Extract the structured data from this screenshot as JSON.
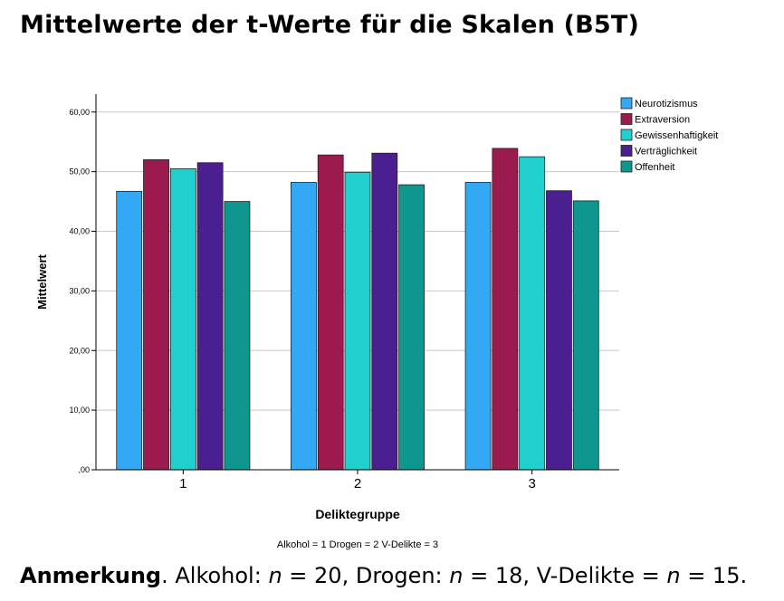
{
  "page_title": "Mittelwerte der t-Werte für die Skalen (B5T)",
  "chart_data": {
    "type": "bar",
    "title": "",
    "xlabel": "Deliktegruppe",
    "xlabel_note": "Alkohol = 1   Drogen = 2   V-Delikte = 3",
    "ylabel": "Mittelwert",
    "ylim": [
      0,
      63
    ],
    "yticks": [
      0,
      10,
      20,
      30,
      40,
      50,
      60
    ],
    "ytick_labels": [
      ",00",
      "10,00",
      "20,00",
      "30,00",
      "40,00",
      "50,00",
      "60,00"
    ],
    "grid": true,
    "legend_position": "top-right",
    "categories": [
      "1",
      "2",
      "3"
    ],
    "series": [
      {
        "name": "Neurotizismus",
        "color": "#33a8f5",
        "values": [
          46.7,
          48.2,
          48.2
        ]
      },
      {
        "name": "Extraversion",
        "color": "#9b1b4f",
        "values": [
          52.0,
          52.8,
          53.9
        ]
      },
      {
        "name": "Gewissenhaftigkeit",
        "color": "#22cfcf",
        "values": [
          50.5,
          49.9,
          52.5
        ]
      },
      {
        "name": "Verträglichkeit",
        "color": "#4b1f8f",
        "values": [
          51.5,
          53.1,
          46.8
        ]
      },
      {
        "name": "Offenheit",
        "color": "#0e978f",
        "values": [
          45.0,
          47.8,
          45.1
        ]
      }
    ]
  },
  "footnote": {
    "label": "Anmerkung",
    "p1": ". Alkohol: ",
    "n1_label": "n",
    "p2": " = 20, Drogen: ",
    "n2_label": "n",
    "p3": " = 18, V-Delikte = ",
    "n3_label": "n",
    "p4": " = 15."
  }
}
